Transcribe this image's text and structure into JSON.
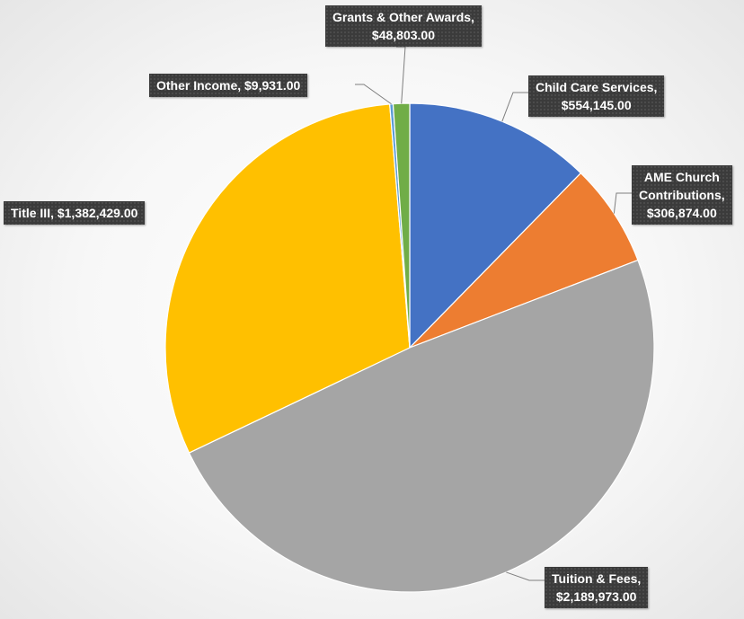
{
  "chart_data": {
    "type": "pie",
    "start_angle_deg": 0,
    "direction": "clockwise",
    "slices": [
      {
        "name": "Child Care Services",
        "value": 554145.0,
        "label": [
          "Child Care Services,",
          "$554,145.00"
        ],
        "color": "#4472C4"
      },
      {
        "name": "AME Church Contributions",
        "value": 306874.0,
        "label": [
          "AME Church",
          "Contributions,",
          "$306,874.00"
        ],
        "color": "#ED7D31"
      },
      {
        "name": "Tuition & Fees",
        "value": 2189973.0,
        "label": [
          "Tuition & Fees,",
          "$2,189,973.00"
        ],
        "color": "#A5A5A5"
      },
      {
        "name": "Title III",
        "value": 1382429.0,
        "label": [
          "Title III, $1,382,429.00"
        ],
        "color": "#FFC000"
      },
      {
        "name": "Other Income",
        "value": 9931.0,
        "label": [
          "Other Income, $9,931.00"
        ],
        "color": "#5B9BD5"
      },
      {
        "name": "Grants & Other Awards",
        "value": 48803.0,
        "label": [
          "Grants & Other Awards,",
          "$48,803.00"
        ],
        "color": "#70AD47"
      }
    ]
  }
}
